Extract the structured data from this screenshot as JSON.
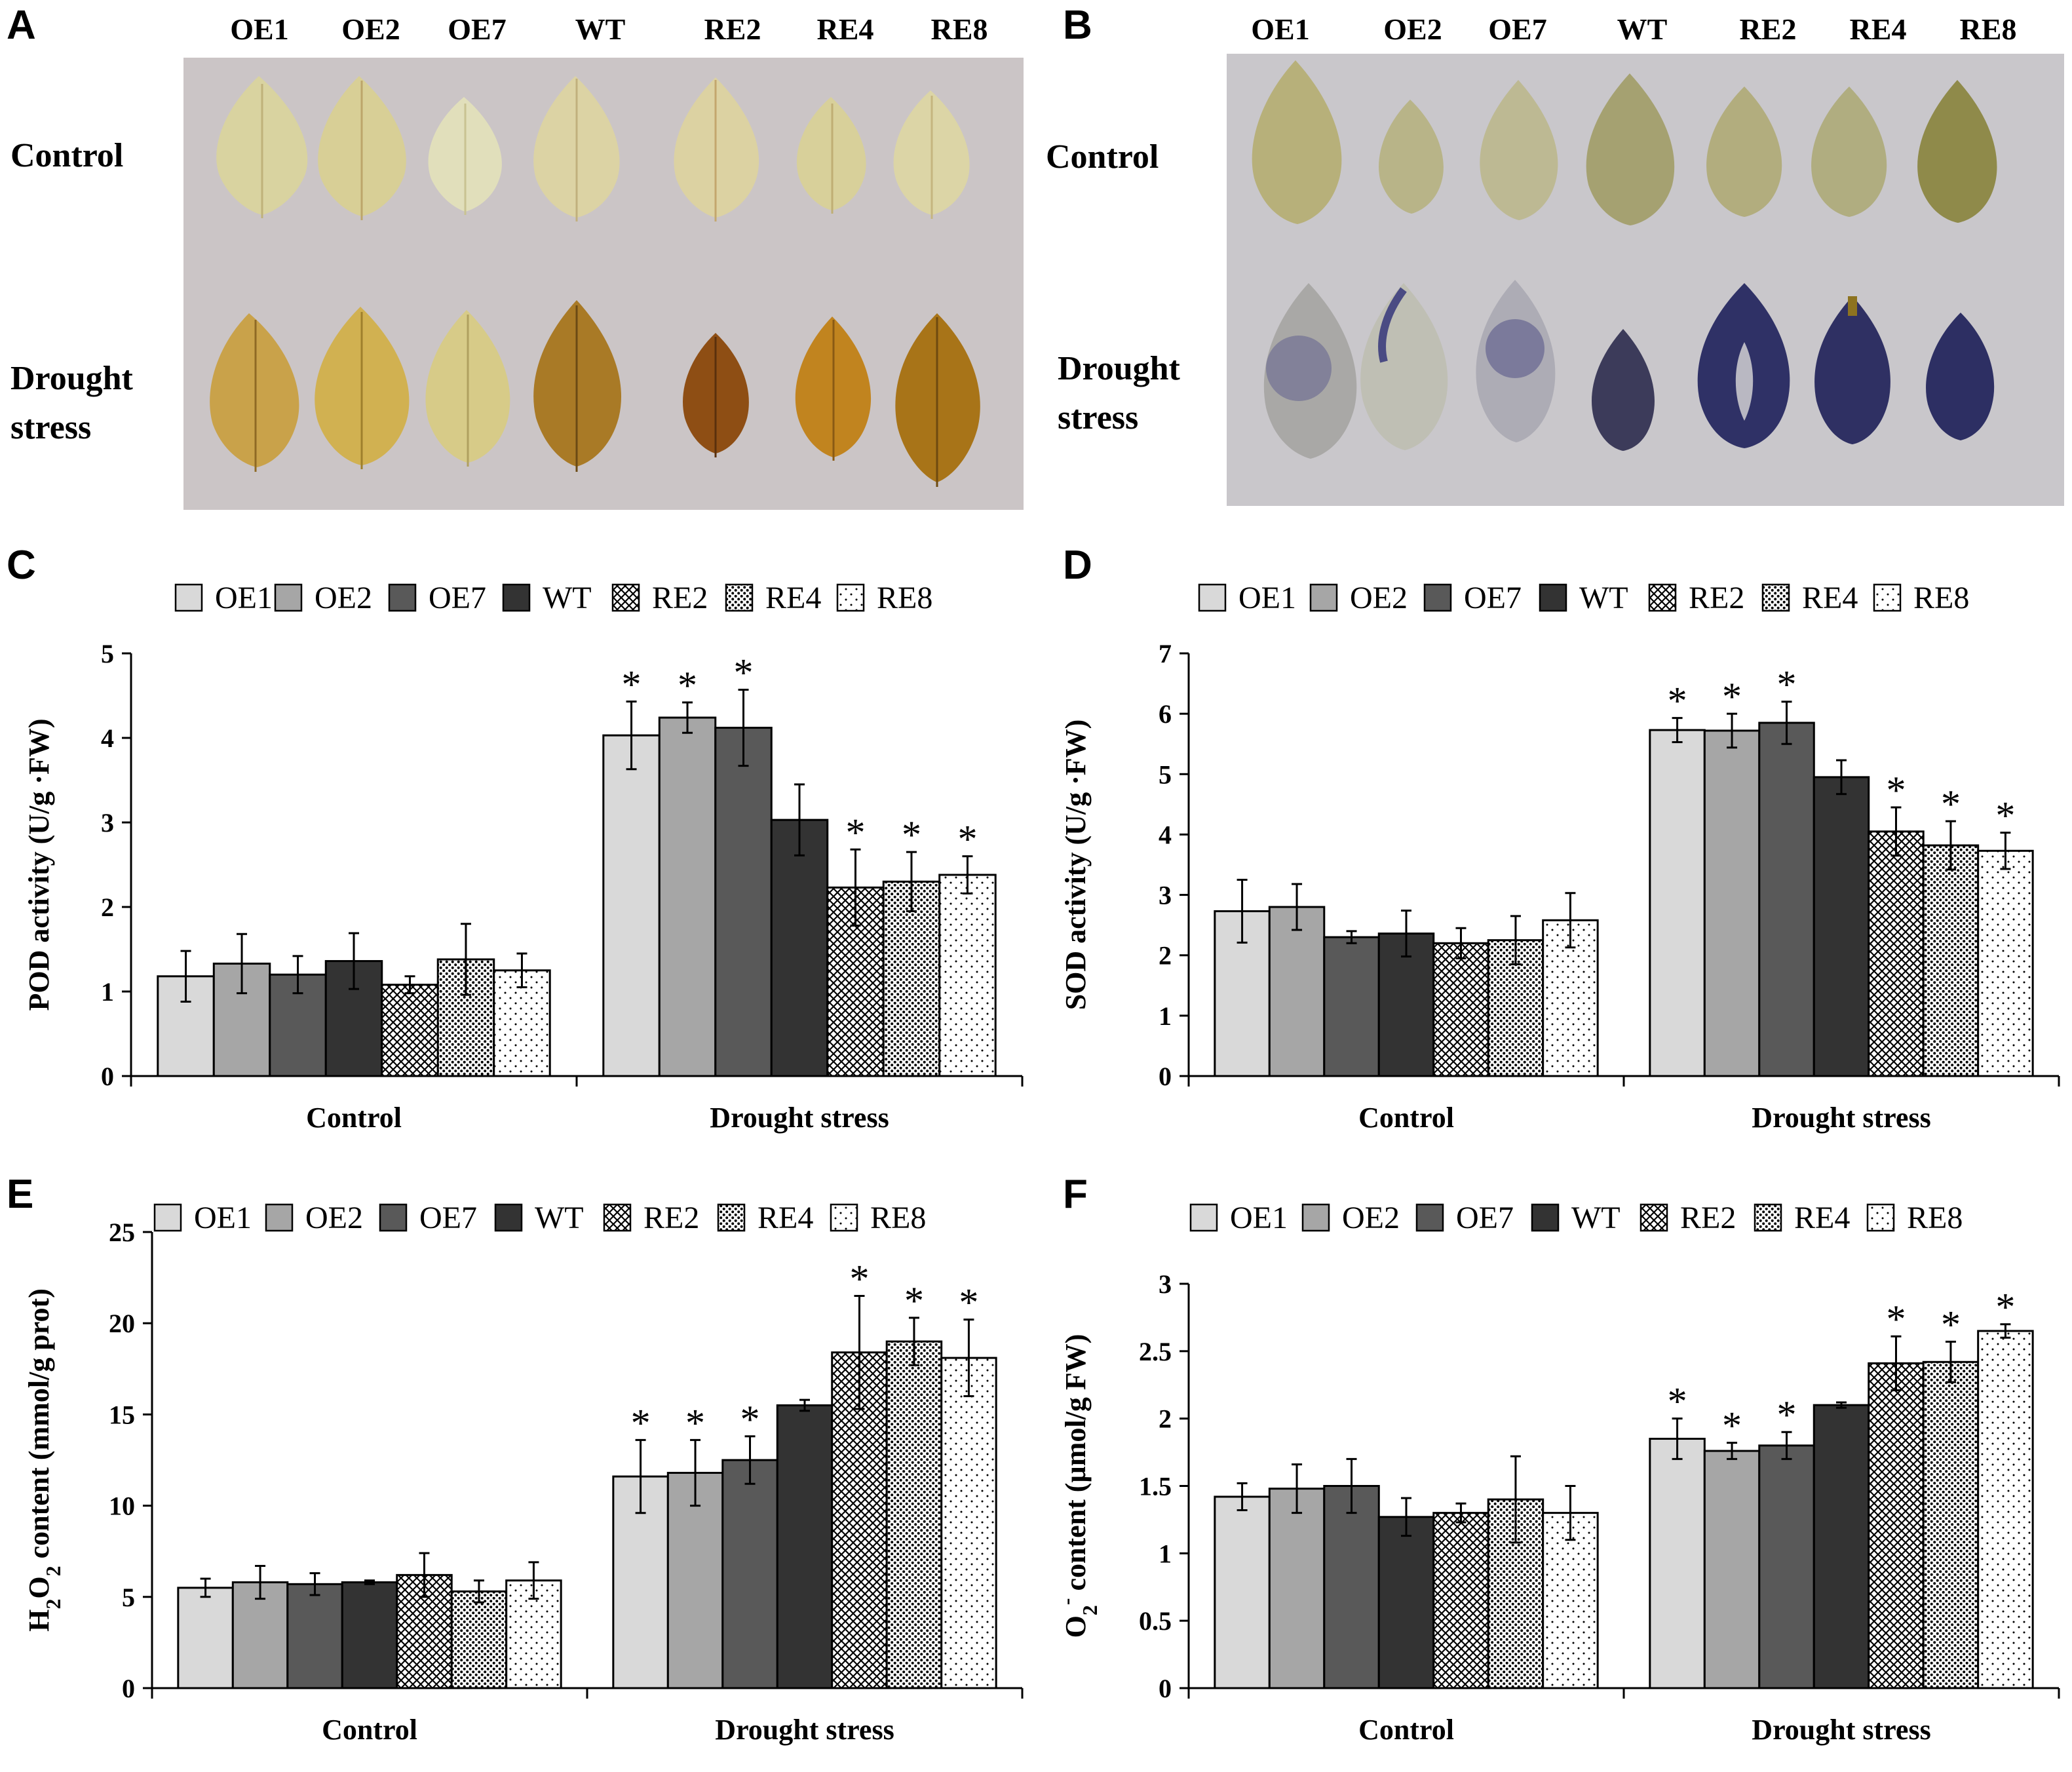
{
  "panels": {
    "a": "A",
    "b": "B",
    "c": "C",
    "d": "D",
    "e": "E",
    "f": "F"
  },
  "genotypes": [
    "OE1",
    "OE2",
    "OE7",
    "WT",
    "RE2",
    "RE4",
    "RE8"
  ],
  "photo_rows": {
    "control": "Control",
    "drought_line1": "Drought",
    "drought_line2": "stress"
  },
  "colors": {
    "photo_bg_a": "#cbc5c6",
    "photo_bg_b": "#c9c7cb",
    "OE1": "#d9d9d9",
    "OE2": "#a6a6a6",
    "OE7": "#595959",
    "WT": "#333333"
  },
  "chart_data": [
    {
      "id": "C",
      "type": "bar",
      "categories": [
        "Control",
        "Drought stress"
      ],
      "legend": [
        "OE1",
        "OE2",
        "OE7",
        "WT",
        "RE2",
        "RE4",
        "RE8"
      ],
      "ylabel": "POD activity (U/g ·FW)",
      "ylim": [
        0,
        5
      ],
      "yticks": [
        0,
        1,
        2,
        3,
        4,
        5
      ],
      "series": [
        {
          "name": "OE1",
          "values": [
            1.18,
            4.03
          ],
          "errors": [
            0.3,
            0.4
          ],
          "sig": [
            false,
            true
          ]
        },
        {
          "name": "OE2",
          "values": [
            1.33,
            4.24
          ],
          "errors": [
            0.35,
            0.18
          ],
          "sig": [
            false,
            true
          ]
        },
        {
          "name": "OE7",
          "values": [
            1.2,
            4.12
          ],
          "errors": [
            0.22,
            0.45
          ],
          "sig": [
            false,
            true
          ]
        },
        {
          "name": "WT",
          "values": [
            1.36,
            3.03
          ],
          "errors": [
            0.33,
            0.42
          ],
          "sig": [
            false,
            false
          ]
        },
        {
          "name": "RE2",
          "values": [
            1.08,
            2.23
          ],
          "errors": [
            0.1,
            0.45
          ],
          "sig": [
            false,
            true
          ]
        },
        {
          "name": "RE4",
          "values": [
            1.38,
            2.3
          ],
          "errors": [
            0.42,
            0.35
          ],
          "sig": [
            false,
            true
          ]
        },
        {
          "name": "RE8",
          "values": [
            1.25,
            2.38
          ],
          "errors": [
            0.2,
            0.22
          ],
          "sig": [
            false,
            true
          ]
        }
      ]
    },
    {
      "id": "D",
      "type": "bar",
      "categories": [
        "Control",
        "Drought stress"
      ],
      "legend": [
        "OE1",
        "OE2",
        "OE7",
        "WT",
        "RE2",
        "RE4",
        "RE8"
      ],
      "ylabel": "SOD activity (U/g ·FW)",
      "ylim": [
        0,
        7
      ],
      "yticks": [
        0,
        1,
        2,
        3,
        4,
        5,
        6,
        7
      ],
      "series": [
        {
          "name": "OE1",
          "values": [
            2.73,
            5.73
          ],
          "errors": [
            0.52,
            0.2
          ],
          "sig": [
            false,
            true
          ]
        },
        {
          "name": "OE2",
          "values": [
            2.8,
            5.72
          ],
          "errors": [
            0.38,
            0.28
          ],
          "sig": [
            false,
            true
          ]
        },
        {
          "name": "OE7",
          "values": [
            2.3,
            5.85
          ],
          "errors": [
            0.1,
            0.35
          ],
          "sig": [
            false,
            true
          ]
        },
        {
          "name": "WT",
          "values": [
            2.36,
            4.95
          ],
          "errors": [
            0.38,
            0.28
          ],
          "sig": [
            false,
            false
          ]
        },
        {
          "name": "RE2",
          "values": [
            2.2,
            4.05
          ],
          "errors": [
            0.25,
            0.4
          ],
          "sig": [
            false,
            true
          ]
        },
        {
          "name": "RE4",
          "values": [
            2.25,
            3.82
          ],
          "errors": [
            0.4,
            0.4
          ],
          "sig": [
            false,
            true
          ]
        },
        {
          "name": "RE8",
          "values": [
            2.58,
            3.73
          ],
          "errors": [
            0.45,
            0.3
          ],
          "sig": [
            false,
            true
          ]
        }
      ]
    },
    {
      "id": "E",
      "type": "bar",
      "categories": [
        "Control",
        "Drought stress"
      ],
      "legend": [
        "OE1",
        "OE2",
        "OE7",
        "WT",
        "RE2",
        "RE4",
        "RE8"
      ],
      "ylabel_parts": [
        "H",
        "2",
        "O",
        "2",
        " content (mmol/g prot)"
      ],
      "ylim": [
        0,
        25
      ],
      "yticks": [
        0,
        5,
        10,
        15,
        20,
        25
      ],
      "series": [
        {
          "name": "OE1",
          "values": [
            5.5,
            11.6
          ],
          "errors": [
            0.5,
            2.0
          ],
          "sig": [
            false,
            true
          ]
        },
        {
          "name": "OE2",
          "values": [
            5.8,
            11.8
          ],
          "errors": [
            0.9,
            1.8
          ],
          "sig": [
            false,
            true
          ]
        },
        {
          "name": "OE7",
          "values": [
            5.7,
            12.5
          ],
          "errors": [
            0.6,
            1.3
          ],
          "sig": [
            false,
            true
          ]
        },
        {
          "name": "WT",
          "values": [
            5.8,
            15.5
          ],
          "errors": [
            0.1,
            0.3
          ],
          "sig": [
            false,
            false
          ]
        },
        {
          "name": "RE2",
          "values": [
            6.2,
            18.4
          ],
          "errors": [
            1.2,
            3.1
          ],
          "sig": [
            false,
            true
          ]
        },
        {
          "name": "RE4",
          "values": [
            5.3,
            19.0
          ],
          "errors": [
            0.6,
            1.3
          ],
          "sig": [
            false,
            true
          ]
        },
        {
          "name": "RE8",
          "values": [
            5.9,
            18.1
          ],
          "errors": [
            1.0,
            2.1
          ],
          "sig": [
            false,
            true
          ]
        }
      ]
    },
    {
      "id": "F",
      "type": "bar",
      "categories": [
        "Control",
        "Drought stress"
      ],
      "legend": [
        "OE1",
        "OE2",
        "OE7",
        "WT",
        "RE2",
        "RE4",
        "RE8"
      ],
      "ylabel_parts": [
        "O",
        "2",
        "-",
        " content (µmol/g FW)"
      ],
      "ylim": [
        0,
        3
      ],
      "yticks": [
        0,
        0.5,
        1,
        1.5,
        2,
        2.5,
        3
      ],
      "series": [
        {
          "name": "OE1",
          "values": [
            1.42,
            1.85
          ],
          "errors": [
            0.1,
            0.15
          ],
          "sig": [
            false,
            true
          ]
        },
        {
          "name": "OE2",
          "values": [
            1.48,
            1.76
          ],
          "errors": [
            0.18,
            0.06
          ],
          "sig": [
            false,
            true
          ]
        },
        {
          "name": "OE7",
          "values": [
            1.5,
            1.8
          ],
          "errors": [
            0.2,
            0.1
          ],
          "sig": [
            false,
            true
          ]
        },
        {
          "name": "WT",
          "values": [
            1.27,
            2.1
          ],
          "errors": [
            0.14,
            0.02
          ],
          "sig": [
            false,
            false
          ]
        },
        {
          "name": "RE2",
          "values": [
            1.3,
            2.41
          ],
          "errors": [
            0.07,
            0.2
          ],
          "sig": [
            false,
            true
          ]
        },
        {
          "name": "RE4",
          "values": [
            1.4,
            2.42
          ],
          "errors": [
            0.32,
            0.15
          ],
          "sig": [
            false,
            true
          ]
        },
        {
          "name": "RE8",
          "values": [
            1.3,
            2.65
          ],
          "errors": [
            0.2,
            0.05
          ],
          "sig": [
            false,
            true
          ]
        }
      ]
    }
  ]
}
